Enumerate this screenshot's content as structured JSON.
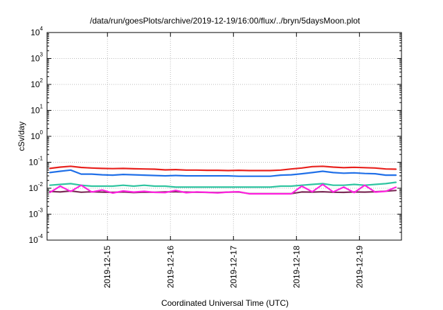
{
  "chart_data": {
    "type": "line",
    "title": "/data/run/goesPlots/archive/2019-12-19/16:00/flux/../bryn/5daysMoon.plot",
    "xlabel": "Coordinated Universal Time (UTC)",
    "ylabel": "cSv/day",
    "yscale": "log",
    "ylim": [
      0.0001,
      10000
    ],
    "y_ticks": [
      {
        "base": "10",
        "exp": "4"
      },
      {
        "base": "10",
        "exp": "3"
      },
      {
        "base": "10",
        "exp": "2"
      },
      {
        "base": "10",
        "exp": "1"
      },
      {
        "base": "10",
        "exp": "0"
      },
      {
        "base": "10",
        "exp": "-1"
      },
      {
        "base": "10",
        "exp": "-2"
      },
      {
        "base": "10",
        "exp": "-3"
      },
      {
        "base": "10",
        "exp": "-4"
      }
    ],
    "xlim": [
      "2019-12-14 01:00",
      "2019-12-19 16:00"
    ],
    "x_ticks": [
      "2019-12-15",
      "2019-12-16",
      "2019-12-17",
      "2019-12-18",
      "2019-12-19"
    ],
    "grid": true,
    "x": [
      "2019-12-14 02:00",
      "2019-12-14 06:00",
      "2019-12-14 10:00",
      "2019-12-14 14:00",
      "2019-12-14 18:00",
      "2019-12-14 22:00",
      "2019-12-15 02:00",
      "2019-12-15 06:00",
      "2019-12-15 10:00",
      "2019-12-15 14:00",
      "2019-12-15 18:00",
      "2019-12-15 22:00",
      "2019-12-16 02:00",
      "2019-12-16 06:00",
      "2019-12-16 10:00",
      "2019-12-16 14:00",
      "2019-12-16 18:00",
      "2019-12-16 22:00",
      "2019-12-17 02:00",
      "2019-12-17 06:00",
      "2019-12-17 10:00",
      "2019-12-17 14:00",
      "2019-12-17 18:00",
      "2019-12-17 22:00",
      "2019-12-18 02:00",
      "2019-12-18 06:00",
      "2019-12-18 10:00",
      "2019-12-18 14:00",
      "2019-12-18 18:00",
      "2019-12-18 22:00",
      "2019-12-19 02:00",
      "2019-12-19 06:00",
      "2019-12-19 10:00",
      "2019-12-19 14:00"
    ],
    "series": [
      {
        "color": "#7a2a55",
        "values": [
          0.0075,
          0.0072,
          0.0078,
          0.007,
          0.0073,
          0.0071,
          0.0069,
          0.0072,
          0.0068,
          0.0071,
          0.007,
          0.0072,
          0.0073,
          0.0071,
          0.007,
          0.0069,
          0.0068,
          0.0071,
          0.0072,
          0.0062,
          0.0062,
          0.0062,
          0.0062,
          0.0062,
          0.0072,
          0.0071,
          0.0073,
          0.007,
          0.0069,
          0.0072,
          0.0071,
          0.0073,
          0.0077,
          0.0082
        ]
      },
      {
        "color": "#2ec4a0",
        "values": [
          0.013,
          0.014,
          0.015,
          0.013,
          0.012,
          0.012,
          0.012,
          0.013,
          0.012,
          0.013,
          0.012,
          0.012,
          0.011,
          0.011,
          0.011,
          0.011,
          0.011,
          0.011,
          0.011,
          0.011,
          0.011,
          0.011,
          0.012,
          0.012,
          0.013,
          0.014,
          0.015,
          0.013,
          0.013,
          0.014,
          0.013,
          0.014,
          0.015,
          0.017
        ]
      },
      {
        "color": "#1f6fe8",
        "values": [
          0.04,
          0.045,
          0.05,
          0.035,
          0.035,
          0.033,
          0.032,
          0.034,
          0.033,
          0.032,
          0.031,
          0.03,
          0.031,
          0.03,
          0.03,
          0.03,
          0.03,
          0.03,
          0.029,
          0.029,
          0.029,
          0.029,
          0.032,
          0.033,
          0.036,
          0.04,
          0.045,
          0.04,
          0.038,
          0.039,
          0.037,
          0.036,
          0.032,
          0.032
        ]
      },
      {
        "color": "#e8201c",
        "values": [
          0.058,
          0.065,
          0.07,
          0.063,
          0.06,
          0.058,
          0.057,
          0.058,
          0.056,
          0.055,
          0.054,
          0.051,
          0.052,
          0.05,
          0.05,
          0.049,
          0.049,
          0.048,
          0.049,
          0.048,
          0.048,
          0.048,
          0.05,
          0.055,
          0.06,
          0.068,
          0.07,
          0.065,
          0.062,
          0.064,
          0.062,
          0.06,
          0.055,
          0.054
        ]
      },
      {
        "color": "#ff22e0",
        "values": [
          0.0068,
          0.012,
          0.0075,
          0.013,
          0.0072,
          0.0085,
          0.0065,
          0.0078,
          0.0071,
          0.0076,
          0.0069,
          0.0068,
          0.0082,
          0.0067,
          0.0072,
          0.0069,
          0.0066,
          0.0071,
          0.0073,
          0.0061,
          0.0061,
          0.0061,
          0.0061,
          0.0061,
          0.012,
          0.0073,
          0.014,
          0.0072,
          0.011,
          0.0068,
          0.013,
          0.0071,
          0.0076,
          0.011
        ]
      }
    ]
  }
}
